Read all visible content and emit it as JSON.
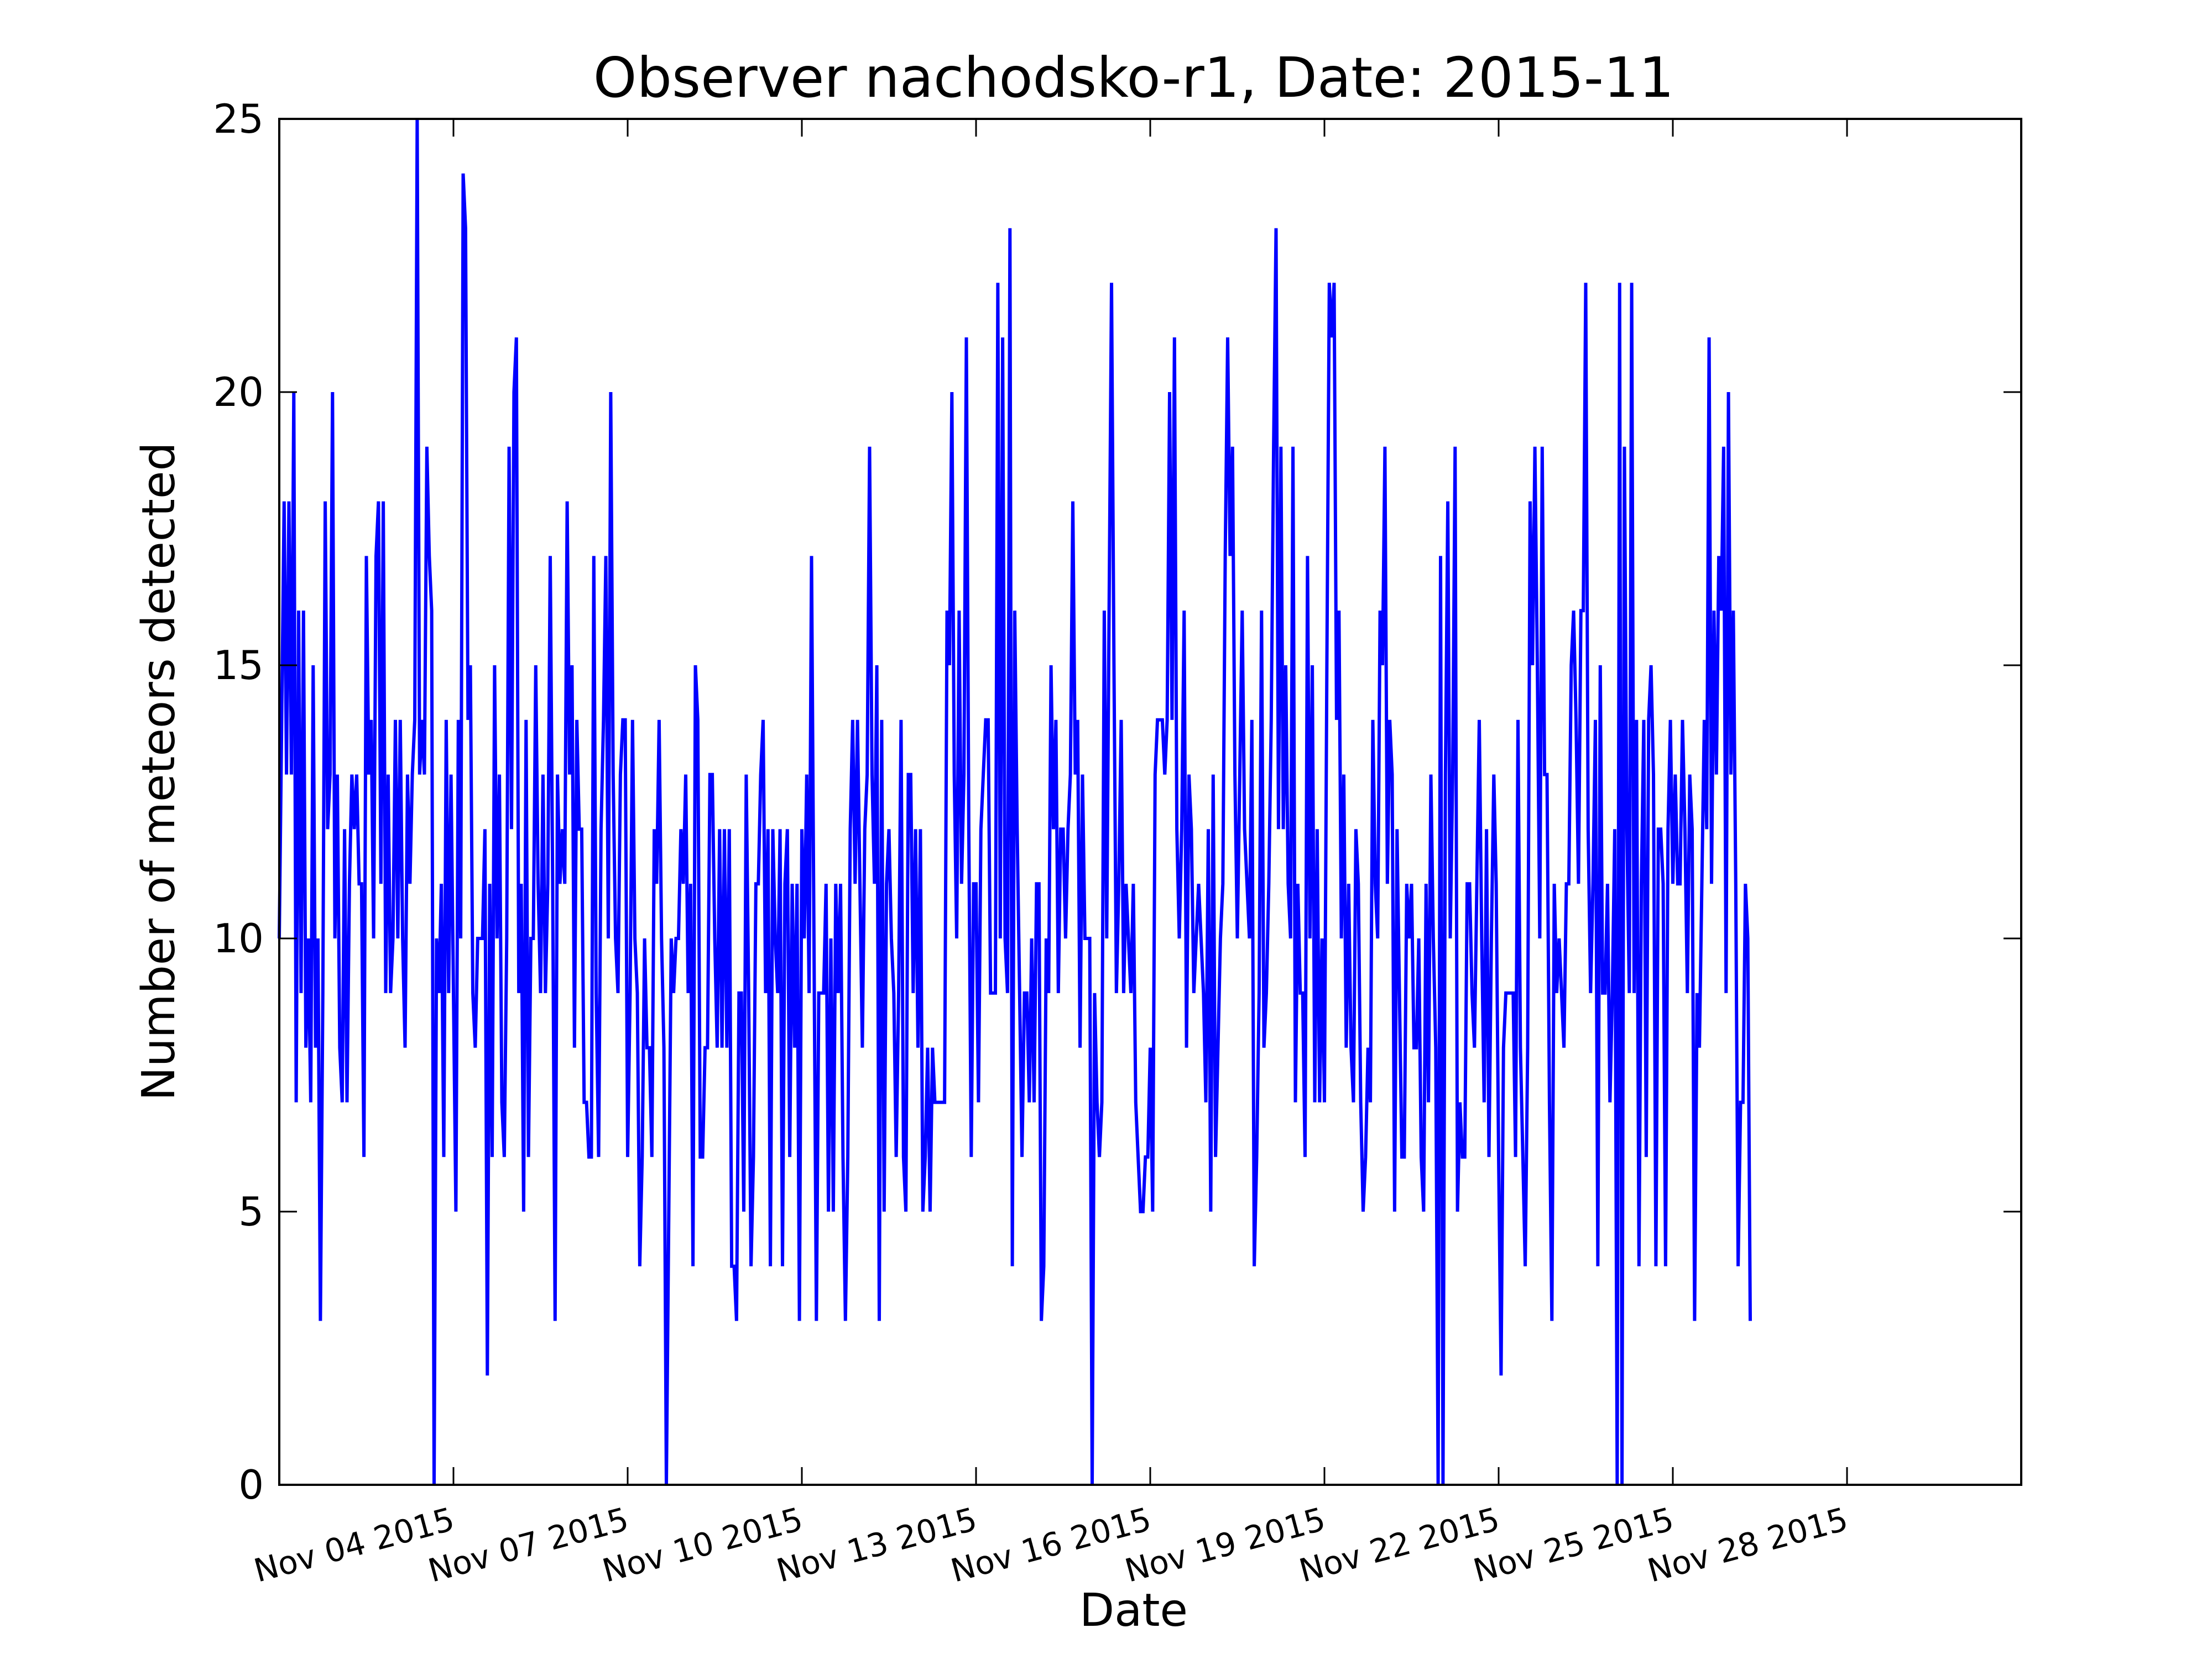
{
  "chart_data": {
    "type": "line",
    "title": "Observer nachodsko-r1, Date: 2015-11",
    "xlabel": "Date",
    "ylabel": "Number of meteors detected",
    "ylim": [
      0,
      25
    ],
    "yticks": [
      0,
      5,
      10,
      15,
      20,
      25
    ],
    "xlim": [
      "2015-11-02 00:00",
      "2015-12-02 00:00"
    ],
    "xticks": [
      {
        "date": "2015-11-05 00:00",
        "label": "Nov 04 2015"
      },
      {
        "date": "2015-11-08 00:00",
        "label": "Nov 07 2015"
      },
      {
        "date": "2015-11-11 00:00",
        "label": "Nov 10 2015"
      },
      {
        "date": "2015-11-14 00:00",
        "label": "Nov 13 2015"
      },
      {
        "date": "2015-11-17 00:00",
        "label": "Nov 16 2015"
      },
      {
        "date": "2015-11-20 00:00",
        "label": "Nov 19 2015"
      },
      {
        "date": "2015-11-23 00:00",
        "label": "Nov 22 2015"
      },
      {
        "date": "2015-11-26 00:00",
        "label": "Nov 25 2015"
      },
      {
        "date": "2015-11-29 00:00",
        "label": "Nov 28 2015"
      }
    ],
    "grid": false,
    "line_color": "#0000ff",
    "series": [
      {
        "x_start": "2015-11-02 00:00",
        "x_step_hours": 1,
        "values": [
          10,
          14,
          18,
          13,
          18,
          13,
          20,
          7,
          16,
          9,
          16,
          8,
          10,
          7,
          15,
          8,
          10,
          3,
          9,
          18,
          12,
          13,
          20,
          10,
          13,
          8,
          7,
          12,
          7,
          11,
          13,
          12,
          13,
          11,
          11,
          6,
          17,
          13,
          14,
          10,
          17,
          18,
          11,
          18,
          9,
          13,
          9,
          10,
          14,
          10,
          14,
          10,
          8,
          13,
          11,
          13,
          14,
          25,
          13,
          14,
          13,
          19,
          17,
          16,
          0,
          10,
          9,
          11,
          6,
          14,
          9,
          13,
          9,
          5,
          14,
          10,
          24,
          23,
          14,
          15,
          9,
          8,
          10,
          10,
          10,
          12,
          2,
          11,
          6,
          15,
          10,
          13,
          7,
          6,
          10,
          19,
          12,
          20,
          21,
          9,
          11,
          5,
          14,
          6,
          10,
          10,
          15,
          11,
          9,
          13,
          9,
          11,
          17,
          11,
          3,
          13,
          11,
          12,
          11,
          18,
          13,
          15,
          8,
          14,
          12,
          12,
          7,
          7,
          6,
          6,
          17,
          9,
          6,
          12,
          14,
          17,
          10,
          20,
          13,
          10,
          9,
          13,
          14,
          14,
          6,
          9,
          14,
          10,
          9,
          4,
          6,
          10,
          8,
          8,
          6,
          12,
          11,
          14,
          10,
          8,
          0,
          5,
          10,
          9,
          10,
          10,
          12,
          11,
          13,
          9,
          11,
          4,
          15,
          14,
          6,
          6,
          8,
          8,
          13,
          13,
          10,
          8,
          12,
          8,
          12,
          8,
          12,
          4,
          4,
          3,
          9,
          9,
          5,
          13,
          9,
          4,
          6,
          11,
          11,
          13,
          14,
          9,
          12,
          4,
          12,
          10,
          9,
          12,
          4,
          11,
          12,
          6,
          11,
          8,
          11,
          3,
          12,
          10,
          13,
          9,
          17,
          10,
          3,
          9,
          9,
          9,
          11,
          5,
          10,
          5,
          11,
          9,
          11,
          6,
          3,
          6,
          12,
          14,
          11,
          14,
          11,
          8,
          12,
          13,
          19,
          13,
          11,
          15,
          3,
          14,
          5,
          11,
          12,
          10,
          9,
          6,
          9,
          14,
          6,
          5,
          13,
          13,
          9,
          12,
          8,
          12,
          5,
          6,
          8,
          5,
          8,
          7,
          7,
          7,
          7,
          7,
          16,
          15,
          20,
          13,
          10,
          16,
          11,
          13,
          21,
          12,
          6,
          11,
          11,
          7,
          12,
          13,
          14,
          14,
          9,
          9,
          9,
          22,
          10,
          21,
          10,
          9,
          23,
          4,
          16,
          12,
          9,
          6,
          9,
          9,
          7,
          10,
          7,
          11,
          11,
          3,
          4,
          10,
          9,
          15,
          12,
          14,
          9,
          12,
          12,
          10,
          12,
          13,
          18,
          13,
          14,
          8,
          13,
          10,
          10,
          10,
          0,
          9,
          7,
          6,
          7,
          16,
          10,
          16,
          22,
          15,
          9,
          11,
          14,
          9,
          11,
          10,
          9,
          11,
          7,
          6,
          5,
          5,
          6,
          6,
          8,
          5,
          13,
          14,
          14,
          14,
          13,
          14,
          20,
          14,
          21,
          12,
          10,
          12,
          16,
          8,
          13,
          12,
          9,
          10,
          11,
          10,
          9,
          7,
          12,
          5,
          13,
          6,
          8,
          10,
          11,
          17,
          21,
          17,
          19,
          13,
          10,
          13,
          16,
          12,
          11,
          10,
          14,
          4,
          6,
          9,
          16,
          8,
          9,
          11,
          14,
          19,
          23,
          12,
          19,
          12,
          15,
          11,
          10,
          19,
          7,
          11,
          9,
          9,
          6,
          17,
          10,
          15,
          7,
          12,
          7,
          10,
          7,
          15,
          22,
          21,
          22,
          14,
          16,
          10,
          13,
          8,
          11,
          8,
          7,
          12,
          11,
          7,
          5,
          6,
          8,
          7,
          14,
          11,
          10,
          16,
          15,
          19,
          11,
          14,
          13,
          5,
          12,
          9,
          6,
          6,
          11,
          10,
          11,
          8,
          8,
          10,
          6,
          5,
          11,
          7,
          13,
          10,
          8,
          0,
          17,
          0,
          13,
          18,
          10,
          13,
          19,
          5,
          7,
          6,
          6,
          11,
          11,
          9,
          8,
          11,
          14,
          10,
          7,
          12,
          6,
          10,
          13,
          11,
          6,
          2,
          8,
          9,
          9,
          9,
          9,
          6,
          14,
          8,
          6,
          4,
          8,
          18,
          15,
          19,
          15,
          10,
          19,
          13,
          13,
          7,
          3,
          11,
          9,
          10,
          9,
          8,
          11,
          11,
          15,
          16,
          14,
          11,
          16,
          16,
          22,
          12,
          9,
          11,
          14,
          4,
          15,
          9,
          9,
          11,
          7,
          9,
          12,
          0,
          22,
          0,
          19,
          12,
          9,
          22,
          9,
          14,
          4,
          11,
          14,
          6,
          14,
          15,
          13,
          4,
          12,
          12,
          11,
          4,
          12,
          14,
          11,
          13,
          11,
          11,
          14,
          12,
          9,
          13,
          12,
          3,
          9,
          8,
          11,
          14,
          12,
          21,
          11,
          16,
          13,
          17,
          16,
          19,
          9,
          20,
          13,
          16,
          11,
          4,
          7,
          7,
          11,
          10,
          3
        ]
      }
    ]
  }
}
